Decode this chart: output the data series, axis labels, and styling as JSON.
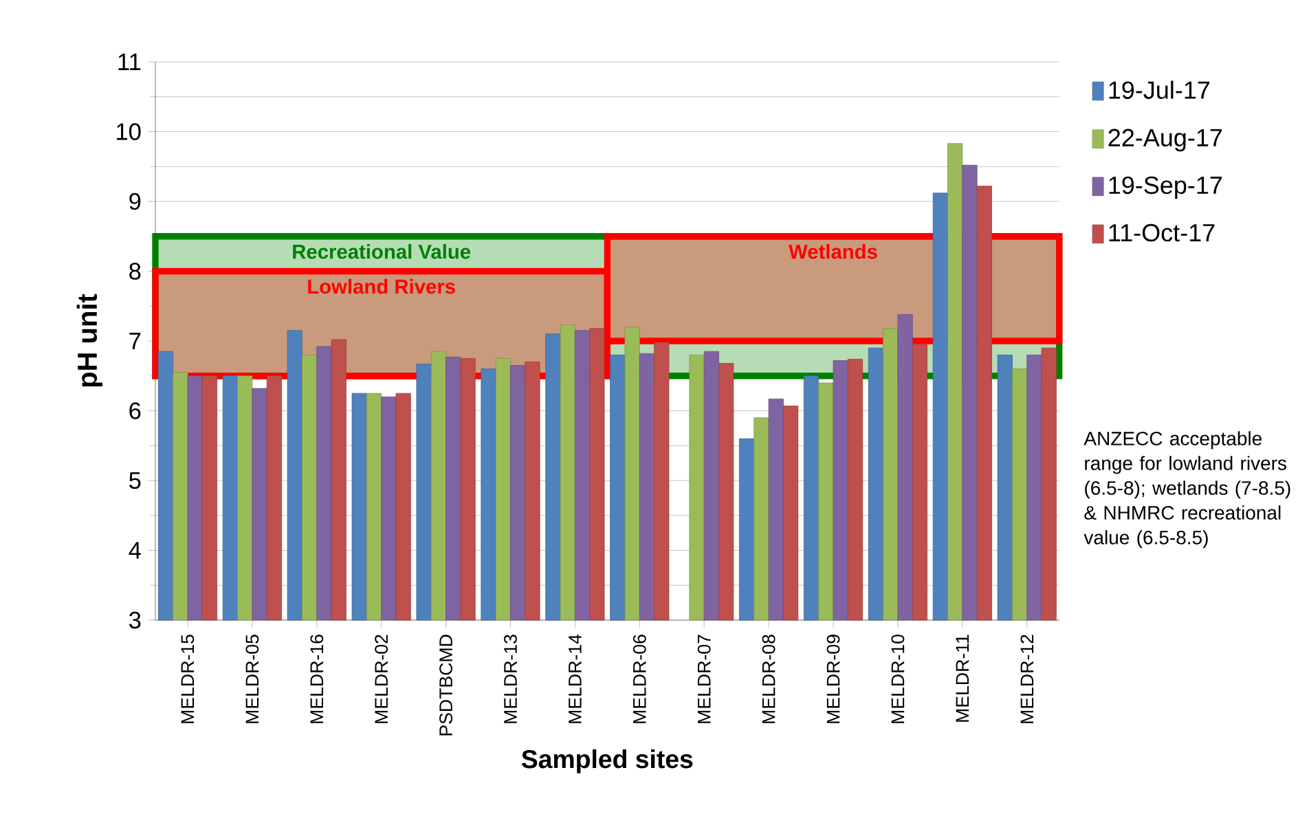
{
  "chart_data": {
    "type": "bar",
    "xlabel": "Sampled sites",
    "ylabel": "pH unit",
    "categories": [
      "MELDR-15",
      "MELDR-05",
      "MELDR-16",
      "MELDR-02",
      "PSDTBCMD",
      "MELDR-13",
      "MELDR-14",
      "MELDR-06",
      "MELDR-07",
      "MELDR-08",
      "MELDR-09",
      "MELDR-10",
      "MELDR-11",
      "MELDR-12"
    ],
    "series": [
      {
        "name": "19-Jul-17",
        "color": "#4f81bd",
        "values": [
          6.85,
          6.5,
          7.15,
          6.25,
          6.67,
          6.6,
          7.1,
          6.8,
          null,
          5.6,
          6.5,
          6.9,
          9.12,
          6.8
        ]
      },
      {
        "name": "22-Aug-17",
        "color": "#9bbb59",
        "values": [
          6.55,
          6.5,
          6.8,
          6.25,
          6.85,
          6.75,
          7.23,
          7.2,
          6.8,
          5.9,
          6.4,
          7.18,
          9.83,
          6.6
        ]
      },
      {
        "name": "19-Sep-17",
        "color": "#8064a2",
        "values": [
          6.5,
          6.32,
          6.92,
          6.2,
          6.77,
          6.65,
          7.15,
          6.82,
          6.85,
          6.17,
          6.72,
          7.38,
          9.52,
          6.8
        ]
      },
      {
        "name": "11-Oct-17",
        "color": "#c0504d",
        "values": [
          6.5,
          6.5,
          7.02,
          6.25,
          6.75,
          6.7,
          7.18,
          6.98,
          6.68,
          6.07,
          6.74,
          6.95,
          9.22,
          6.9
        ]
      }
    ],
    "ylim": [
      3,
      11
    ],
    "yticks": [
      3,
      4,
      5,
      6,
      7,
      8,
      9,
      10,
      11
    ],
    "grid": "y",
    "legend": "right",
    "bands": [
      {
        "axis": "y",
        "from": 6.5,
        "to": 8.5,
        "label": "Recreational Value",
        "color": "#b6dcb6"
      },
      {
        "axis": "y",
        "from": 6.5,
        "to": 8,
        "label": "Lowland Rivers",
        "color": "#c99a7c"
      },
      {
        "axis": "y",
        "from": 7,
        "to": 8.5,
        "label": "Wetlands",
        "color": "#c99a7c"
      }
    ],
    "annotations": [
      "ANZECC acceptable range for lowland rivers (6.5-8); wetlands (7-8.5) & NHMRC recreational value (6.5-8.5)"
    ]
  }
}
